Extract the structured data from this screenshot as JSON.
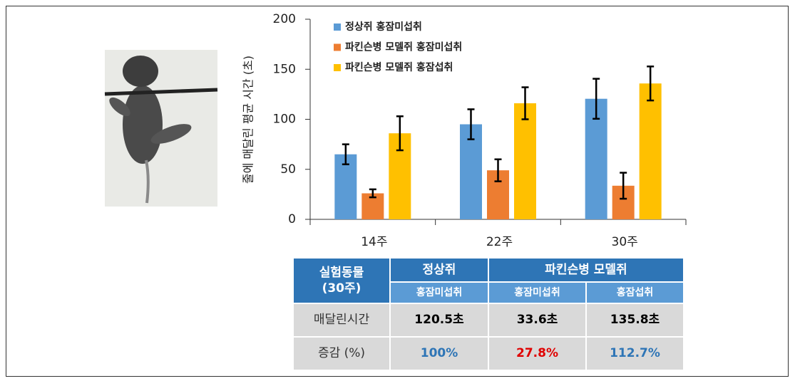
{
  "chart_data": {
    "type": "bar",
    "y_label": "줄에 매달린 평균 시간 (초)",
    "categories": [
      "14주",
      "22주",
      "30주"
    ],
    "series": [
      {
        "name": "정상쥐 홍잠미섭취",
        "color": "#5b9bd5",
        "values": [
          65,
          95,
          120.5
        ],
        "errors": [
          10,
          15,
          20
        ]
      },
      {
        "name": "파킨슨병 모델쥐 홍잠미섭취",
        "color": "#ed7d31",
        "values": [
          26,
          49,
          33.6
        ],
        "errors": [
          4,
          11,
          13
        ]
      },
      {
        "name": "파킨슨병 모델쥐 홍잠섭취",
        "color": "#ffc000",
        "values": [
          86,
          116,
          135.8
        ],
        "errors": [
          17,
          16,
          17
        ]
      }
    ],
    "ylim": [
      0,
      200
    ],
    "yticks": [
      0,
      50,
      100,
      150,
      200
    ],
    "legend": "upper-left"
  },
  "table": {
    "corner": "실험동물\n(30주)",
    "groups": [
      "정상쥐",
      "파킨슨병 모델쥐"
    ],
    "subheaders": [
      "홍잠미섭취",
      "홍잠미섭취",
      "홍잠섭취"
    ],
    "rows": [
      {
        "label": "매달린시간",
        "cells": [
          "120.5초",
          "33.6초",
          "135.8초"
        ],
        "colors": [
          "#000000",
          "#000000",
          "#000000"
        ]
      },
      {
        "label": "증감 (%)",
        "cells": [
          "100%",
          "27.8%",
          "112.7%"
        ],
        "colors": [
          "#2e75b6",
          "#e00000",
          "#2e75b6"
        ]
      }
    ]
  }
}
